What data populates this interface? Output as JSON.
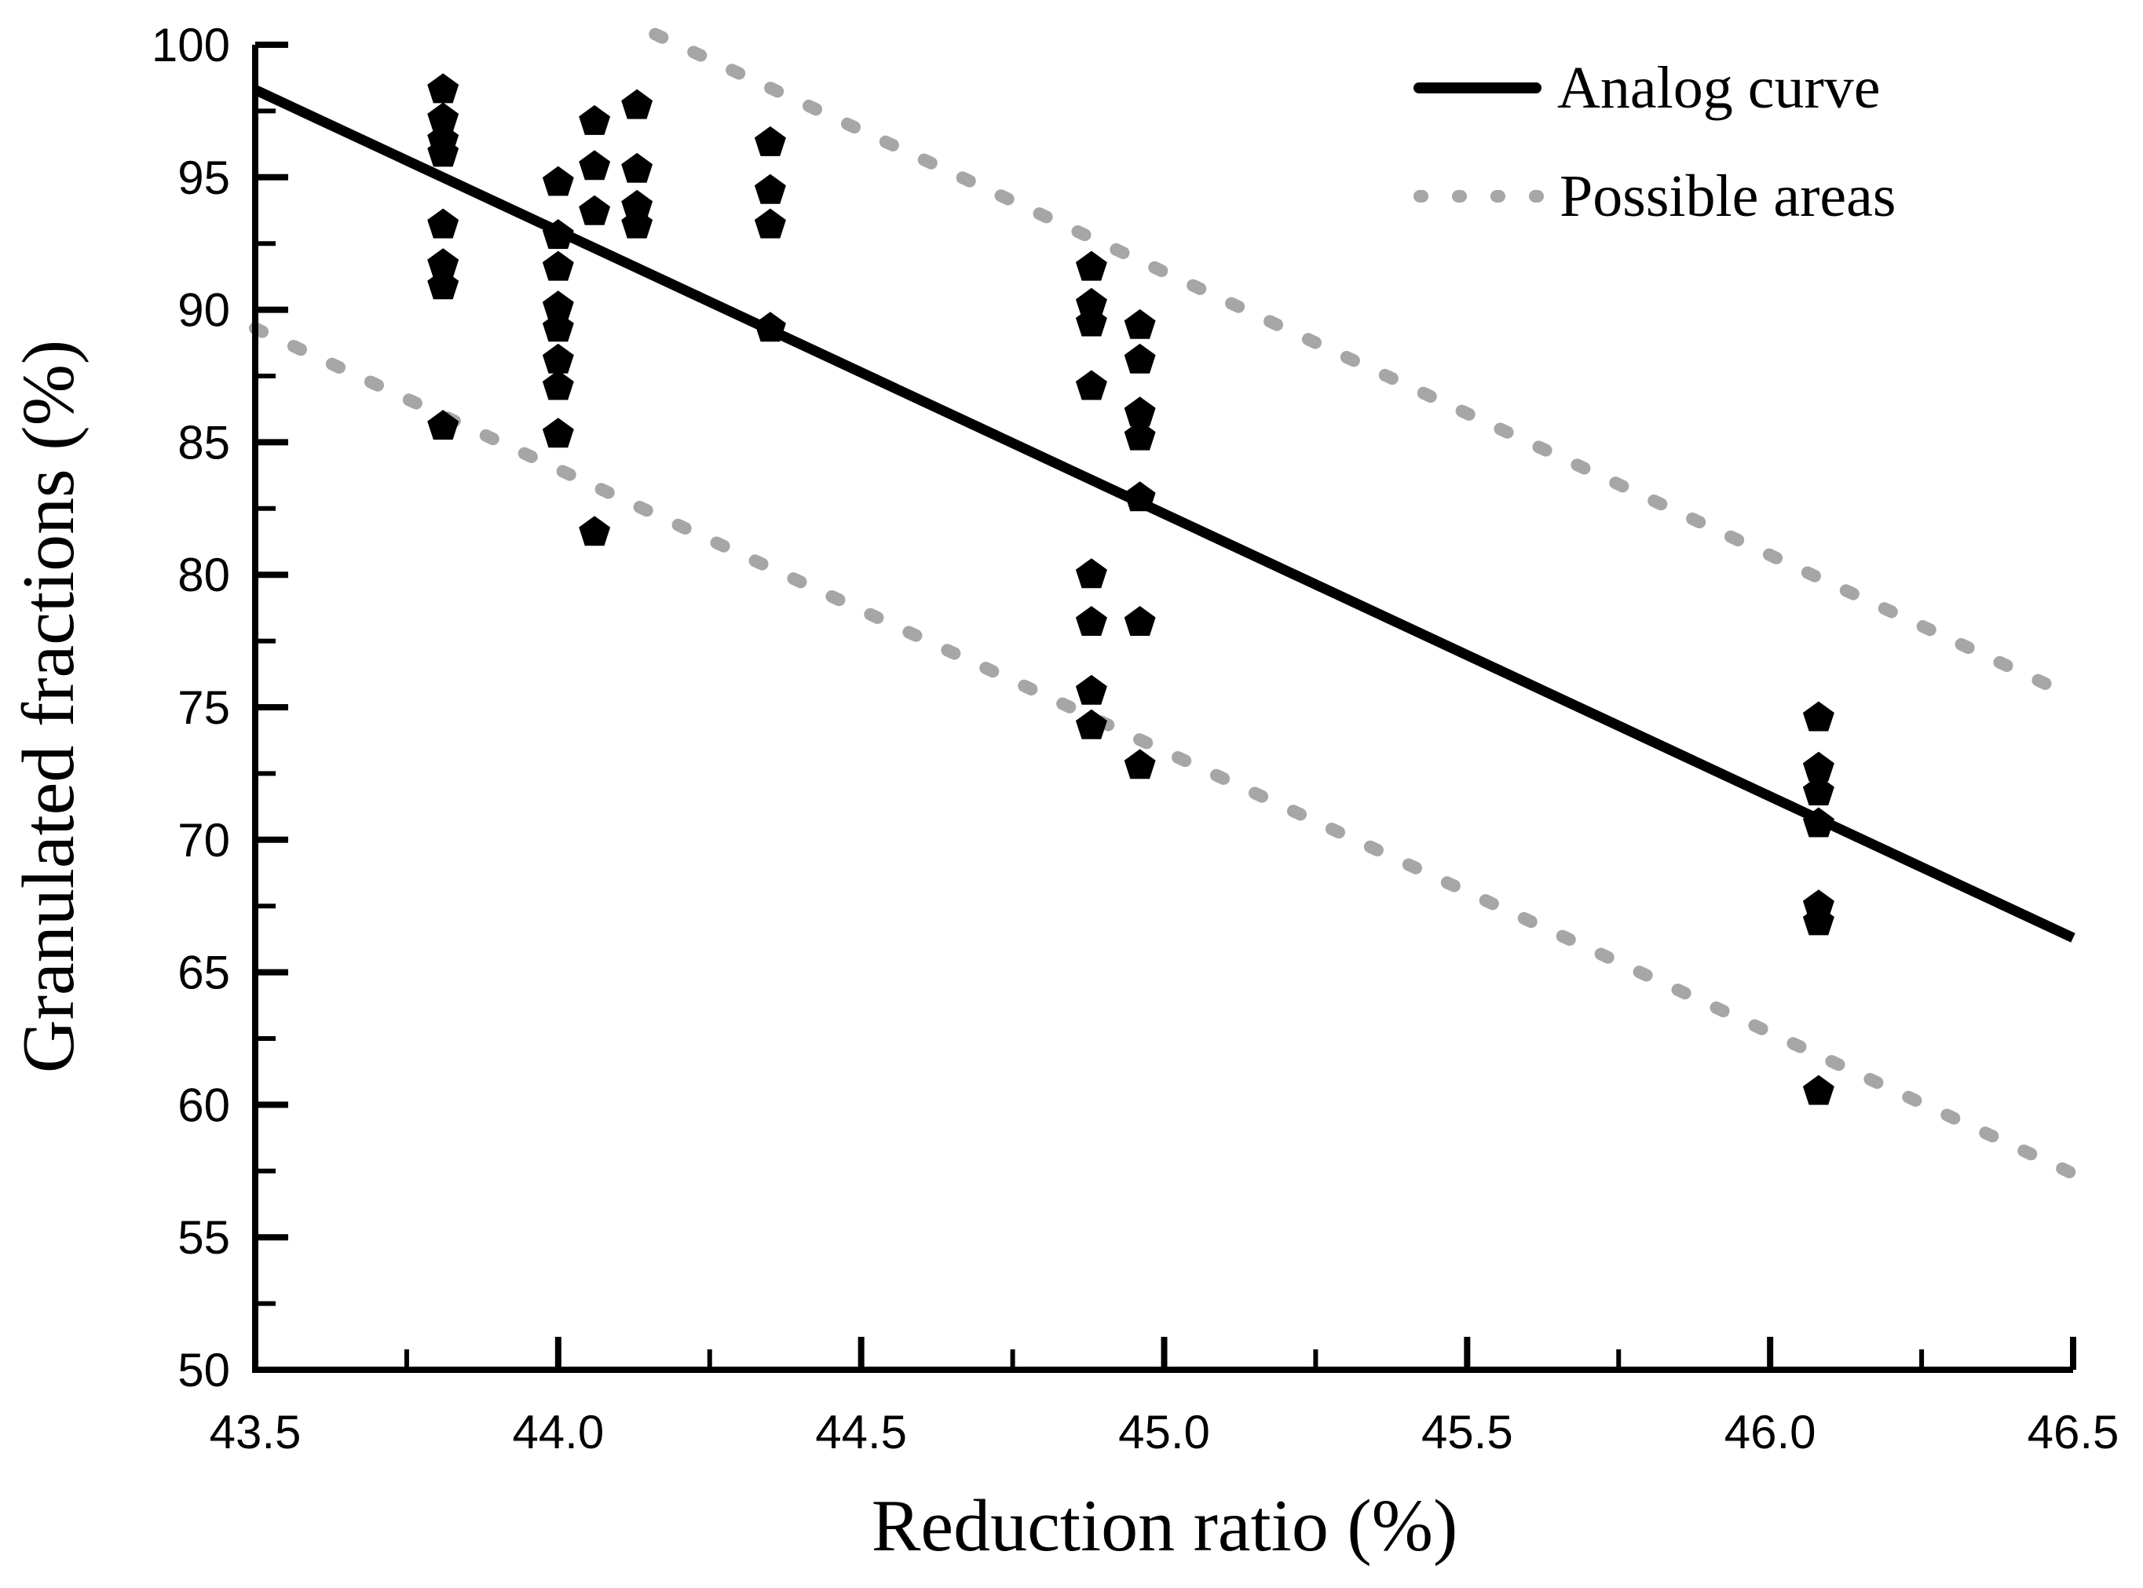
{
  "chart_data": {
    "type": "scatter",
    "title": "",
    "xlabel": "Reduction ratio (%)",
    "ylabel": "Granulated fractions (%)",
    "xlim": [
      43.5,
      46.5
    ],
    "ylim": [
      50,
      100
    ],
    "grid": false,
    "x_tick_values": [
      43.5,
      44.0,
      44.5,
      45.0,
      45.5,
      46.0,
      46.5
    ],
    "x_tick_labels": [
      "43.5",
      "44.0",
      "44.5",
      "45.0",
      "45.5",
      "46.0",
      "46.5"
    ],
    "x_minor_tick_values": [
      43.75,
      44.25,
      44.75,
      45.25,
      45.75,
      46.25
    ],
    "y_tick_values": [
      50,
      55,
      60,
      65,
      70,
      75,
      80,
      85,
      90,
      95,
      100
    ],
    "y_tick_labels": [
      "50",
      "55",
      "60",
      "65",
      "70",
      "75",
      "80",
      "85",
      "90",
      "95",
      "100"
    ],
    "y_minor_tick_values": [
      52.5,
      57.5,
      62.5,
      67.5,
      72.5,
      77.5,
      82.5,
      87.5,
      92.5,
      97.5
    ],
    "legend": {
      "position": "top-right",
      "entries": [
        {
          "label": "Analog curve",
          "style": "solid",
          "color": "#000000"
        },
        {
          "label": "Possible areas",
          "style": "dotted",
          "color": "#a6a6a6"
        }
      ]
    },
    "lines": [
      {
        "name": "analog-curve",
        "style": "solid",
        "color": "#000000",
        "points": [
          [
            43.5,
            98.3
          ],
          [
            46.5,
            66.3
          ]
        ]
      },
      {
        "name": "possible-area-upper-bound",
        "style": "dotted",
        "color": "#a6a6a6",
        "points": [
          [
            44.16,
            100.4
          ],
          [
            46.5,
            75.4
          ]
        ]
      },
      {
        "name": "possible-area-lower-bound",
        "style": "dotted",
        "color": "#a6a6a6",
        "points": [
          [
            43.5,
            89.3
          ],
          [
            46.5,
            57.4
          ]
        ]
      }
    ],
    "series": [
      {
        "name": "granulated-fraction-samples",
        "marker": "pentagon",
        "color": "#000000",
        "points": [
          [
            43.81,
            98.3
          ],
          [
            43.81,
            97.2
          ],
          [
            43.81,
            96.4
          ],
          [
            43.81,
            95.9
          ],
          [
            43.81,
            93.2
          ],
          [
            43.81,
            91.7
          ],
          [
            43.81,
            90.9
          ],
          [
            43.81,
            85.6
          ],
          [
            44.0,
            94.8
          ],
          [
            44.0,
            92.8
          ],
          [
            44.0,
            91.6
          ],
          [
            44.0,
            90.1
          ],
          [
            44.0,
            89.3
          ],
          [
            44.0,
            88.1
          ],
          [
            44.0,
            87.1
          ],
          [
            44.0,
            85.3
          ],
          [
            44.06,
            97.1
          ],
          [
            44.06,
            95.4
          ],
          [
            44.06,
            93.7
          ],
          [
            44.06,
            81.6
          ],
          [
            44.13,
            97.7
          ],
          [
            44.13,
            95.3
          ],
          [
            44.13,
            93.9
          ],
          [
            44.13,
            93.2
          ],
          [
            44.35,
            96.3
          ],
          [
            44.35,
            94.5
          ],
          [
            44.35,
            93.2
          ],
          [
            44.35,
            89.3
          ],
          [
            44.88,
            91.6
          ],
          [
            44.88,
            90.2
          ],
          [
            44.88,
            89.5
          ],
          [
            44.88,
            87.1
          ],
          [
            44.88,
            80.0
          ],
          [
            44.88,
            78.2
          ],
          [
            44.88,
            75.6
          ],
          [
            44.88,
            74.3
          ],
          [
            44.96,
            89.4
          ],
          [
            44.96,
            88.1
          ],
          [
            44.96,
            86.1
          ],
          [
            44.96,
            85.2
          ],
          [
            44.96,
            82.9
          ],
          [
            44.96,
            78.2
          ],
          [
            44.96,
            72.8
          ],
          [
            46.08,
            74.6
          ],
          [
            46.08,
            72.7
          ],
          [
            46.08,
            71.8
          ],
          [
            46.08,
            70.6
          ],
          [
            46.08,
            67.5
          ],
          [
            46.08,
            66.9
          ],
          [
            46.08,
            60.5
          ]
        ]
      }
    ]
  }
}
